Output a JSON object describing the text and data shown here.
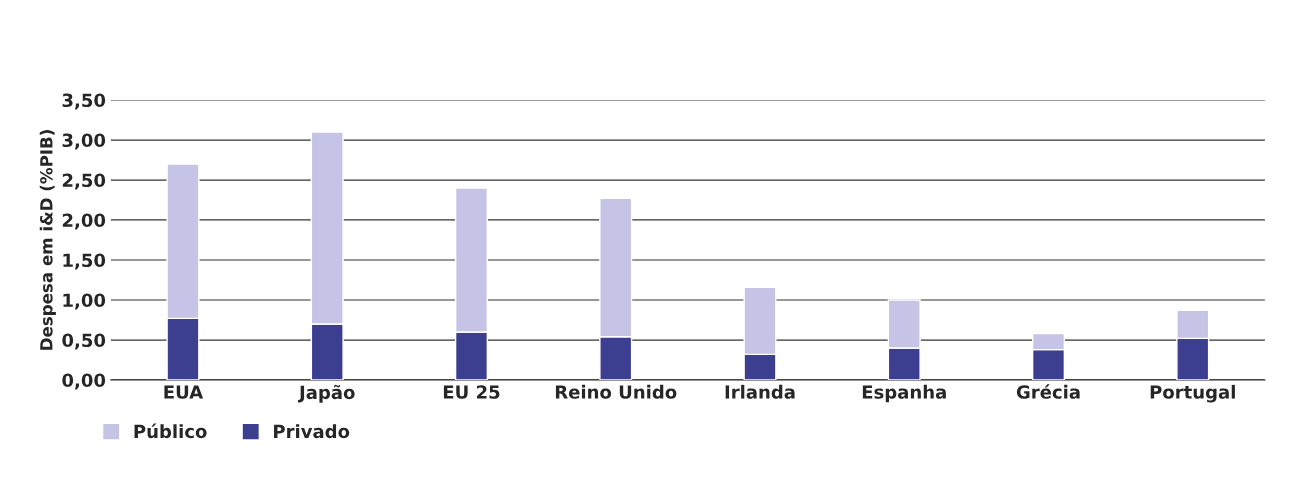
{
  "chart_data": {
    "type": "bar",
    "ylabel": "Despesa em i&D (%PIB)",
    "categories": [
      "EUA",
      "Japão",
      "EU 25",
      "Reino Unido",
      "Irlanda",
      "Espanha",
      "Grécia",
      "Portugal"
    ],
    "series": [
      {
        "name": "Privado",
        "color": "#3c3f8f",
        "values": [
          0.77,
          0.7,
          0.6,
          0.54,
          0.32,
          0.4,
          0.38,
          0.52
        ]
      },
      {
        "name": "Público",
        "color": "#c6c4e6",
        "values": [
          1.93,
          2.4,
          1.8,
          1.73,
          0.84,
          0.6,
          0.2,
          0.35
        ]
      }
    ],
    "stacked": true,
    "ylim": [
      0,
      3.5
    ],
    "yticks": [
      {
        "value": 0,
        "label": "0,00"
      },
      {
        "value": 0.5,
        "label": "0,50"
      },
      {
        "value": 1,
        "label": "1,00"
      },
      {
        "value": 1.5,
        "label": "1,50"
      },
      {
        "value": 2,
        "label": "2,00"
      },
      {
        "value": 2.5,
        "label": "2,50"
      },
      {
        "value": 3,
        "label": "3,00"
      },
      {
        "value": 3.5,
        "label": "3,50"
      }
    ],
    "grid": "y",
    "legend": "bottom left"
  }
}
